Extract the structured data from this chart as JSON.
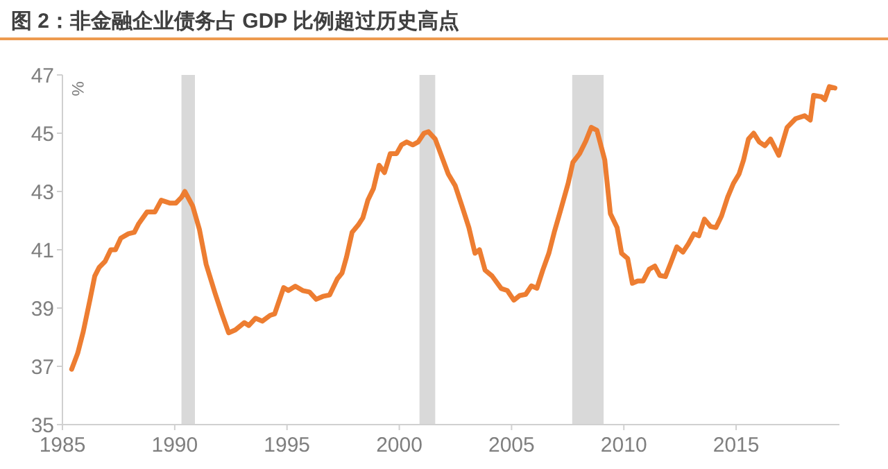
{
  "chart_data": {
    "type": "line",
    "title": "图 2：非金融企业债务占 GDP 比例超过历史高点",
    "ylabel": "%",
    "series": [
      {
        "color": "#ed7d31",
        "x": [
          1985.41,
          1985.68,
          1985.93,
          1986.23,
          1986.44,
          1986.64,
          1986.9,
          1987.15,
          1987.36,
          1987.6,
          1987.94,
          1988.2,
          1988.4,
          1988.77,
          1989.12,
          1989.4,
          1989.8,
          1990.05,
          1990.3,
          1990.45,
          1990.8,
          1991.1,
          1991.4,
          1991.8,
          1992.1,
          1992.4,
          1992.7,
          1993.1,
          1993.3,
          1993.6,
          1993.9,
          1994.25,
          1994.45,
          1994.85,
          1995.06,
          1995.37,
          1995.7,
          1996.0,
          1996.3,
          1996.6,
          1996.9,
          1997.24,
          1997.45,
          1997.65,
          1997.9,
          1998.17,
          1998.38,
          1998.6,
          1998.85,
          1999.1,
          1999.34,
          1999.6,
          1999.88,
          2000.1,
          2000.33,
          2000.6,
          2000.84,
          2001.1,
          2001.3,
          2001.6,
          2002.18,
          2002.49,
          2002.8,
          2003.1,
          2003.37,
          2003.57,
          2003.82,
          2004.13,
          2004.54,
          2004.81,
          2005.1,
          2005.36,
          2005.63,
          2005.88,
          2006.13,
          2006.39,
          2006.66,
          2006.9,
          2007.17,
          2007.52,
          2007.73,
          2008.03,
          2008.3,
          2008.55,
          2008.8,
          2009.15,
          2009.4,
          2009.7,
          2009.9,
          2010.17,
          2010.38,
          2010.62,
          2010.86,
          2011.13,
          2011.38,
          2011.6,
          2011.85,
          2012.1,
          2012.36,
          2012.63,
          2012.87,
          2013.12,
          2013.34,
          2013.59,
          2013.86,
          2014.1,
          2014.35,
          2014.62,
          2014.88,
          2015.13,
          2015.33,
          2015.55,
          2015.78,
          2016.03,
          2016.28,
          2016.53,
          2016.9,
          2017.27,
          2017.65,
          2018.05,
          2018.3,
          2018.45,
          2018.8,
          2018.95,
          2019.15,
          2019.4
        ],
        "values": [
          36.9,
          37.45,
          38.2,
          39.3,
          40.1,
          40.4,
          40.6,
          41.0,
          41.0,
          41.4,
          41.55,
          41.6,
          41.9,
          42.3,
          42.3,
          42.7,
          42.6,
          42.6,
          42.8,
          43.0,
          42.5,
          41.7,
          40.5,
          39.5,
          38.8,
          38.15,
          38.25,
          38.5,
          38.4,
          38.65,
          38.55,
          38.75,
          38.8,
          39.7,
          39.6,
          39.75,
          39.6,
          39.55,
          39.3,
          39.4,
          39.45,
          40.0,
          40.2,
          40.75,
          41.6,
          41.85,
          42.1,
          42.7,
          43.1,
          43.9,
          43.65,
          44.3,
          44.3,
          44.6,
          44.7,
          44.6,
          44.7,
          45.0,
          45.05,
          44.8,
          43.6,
          43.2,
          42.48,
          41.76,
          40.88,
          41.0,
          40.3,
          40.1,
          39.67,
          39.6,
          39.27,
          39.43,
          39.47,
          39.76,
          39.68,
          40.3,
          40.88,
          41.6,
          42.32,
          43.28,
          44.0,
          44.3,
          44.72,
          45.2,
          45.1,
          44.08,
          42.24,
          41.76,
          40.88,
          40.7,
          39.85,
          39.93,
          39.93,
          40.33,
          40.44,
          40.12,
          40.08,
          40.57,
          41.1,
          40.92,
          41.2,
          41.55,
          41.48,
          42.05,
          41.8,
          41.76,
          42.16,
          42.8,
          43.28,
          43.6,
          44.08,
          44.8,
          45.0,
          44.7,
          44.57,
          44.8,
          44.24,
          45.2,
          45.5,
          45.6,
          45.45,
          46.3,
          46.25,
          46.15,
          46.6,
          46.55
        ]
      }
    ],
    "xlim": [
      1985,
      2019.6
    ],
    "xticks": [
      1985,
      1990,
      1995,
      2000,
      2005,
      2010,
      2015
    ],
    "ylim": [
      35,
      47
    ],
    "yticks": [
      35,
      37,
      39,
      41,
      43,
      45,
      47
    ],
    "bands": [
      {
        "axis": "x",
        "from": 1990.3,
        "to": 1990.9,
        "color": "#d9d9d9"
      },
      {
        "axis": "x",
        "from": 2000.9,
        "to": 2001.6,
        "color": "#d9d9d9"
      },
      {
        "axis": "x",
        "from": 2007.7,
        "to": 2009.1,
        "color": "#d9d9d9"
      }
    ],
    "grid": false,
    "marker": "none",
    "line_style": "solid"
  }
}
